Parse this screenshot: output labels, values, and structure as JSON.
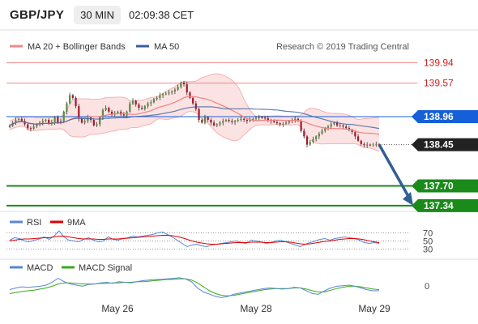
{
  "header": {
    "symbol": "GBP/JPY",
    "timeframe": "30 MIN",
    "time": "02:09:38 CET"
  },
  "colors": {
    "bollinger": "#f08a8a",
    "ma50": "#3a5f9e",
    "ma20": "#f08080",
    "up_candle": "#5a8a3c",
    "down_candle": "#a3182a",
    "resistance": "#f08a8a",
    "support": "#1a8a1a",
    "pivot_blue": "#1560d8",
    "last_price": "#222222",
    "arrow": "#2f5f95",
    "rsi": "#5b86d6",
    "rsi_ma": "#e00000",
    "macd": "#5b86d6",
    "macd_signal": "#3aaa1a"
  },
  "chart_data": {
    "type": "candlestick",
    "title": "",
    "legend": [
      {
        "name": "MA 20 + Bollinger Bands",
        "color": "#f08a8a",
        "shape": "line"
      },
      {
        "name": "MA 50",
        "color": "#3a5f9e",
        "shape": "line"
      }
    ],
    "copyright": "Research © 2019 Trading Central",
    "x_ticks": [
      "May 26",
      "May 28",
      "May 29"
    ],
    "y_range": [
      137.25,
      140.05
    ],
    "levels": [
      {
        "label": "139.94",
        "value": 139.94,
        "kind": "resistance"
      },
      {
        "label": "139.57",
        "value": 139.57,
        "kind": "resistance"
      },
      {
        "label": "138.96",
        "value": 138.96,
        "kind": "pivot"
      },
      {
        "label": "138.45",
        "value": 138.45,
        "kind": "last"
      },
      {
        "label": "137.70",
        "value": 137.7,
        "kind": "support"
      },
      {
        "label": "137.34",
        "value": 137.34,
        "kind": "support"
      }
    ],
    "close": [
      138.8,
      138.85,
      138.9,
      138.92,
      138.88,
      138.82,
      138.75,
      138.74,
      138.78,
      138.82,
      138.85,
      138.88,
      138.9,
      138.84,
      138.86,
      138.95,
      138.85,
      138.88,
      139.05,
      139.2,
      139.35,
      139.3,
      139.15,
      138.92,
      138.85,
      138.88,
      138.95,
      138.9,
      138.8,
      138.82,
      138.95,
      139.08,
      139.12,
      139.05,
      139.0,
      139.02,
      139.05,
      139.0,
      138.98,
      139.05,
      139.2,
      139.25,
      139.18,
      139.12,
      139.1,
      139.15,
      139.2,
      139.22,
      139.28,
      139.3,
      139.35,
      139.37,
      139.38,
      139.4,
      139.42,
      139.45,
      139.5,
      139.58,
      139.55,
      139.4,
      139.3,
      139.2,
      139.1,
      138.9,
      138.85,
      138.95,
      138.9,
      138.85,
      138.8,
      138.82,
      138.85,
      138.88,
      138.9,
      138.88,
      138.86,
      138.88,
      138.9,
      138.92,
      138.9,
      138.88,
      138.9,
      138.92,
      138.94,
      138.95,
      138.94,
      138.93,
      138.9,
      138.88,
      138.86,
      138.84,
      138.82,
      138.83,
      138.85,
      138.88,
      138.9,
      138.92,
      138.88,
      138.7,
      138.6,
      138.45,
      138.5,
      138.55,
      138.6,
      138.65,
      138.7,
      138.75,
      138.78,
      138.82,
      138.85,
      138.8,
      138.8,
      138.78,
      138.75,
      138.72,
      138.68,
      138.6,
      138.52,
      138.46,
      138.44,
      138.45,
      138.44,
      138.45,
      138.46,
      138.45
    ],
    "rsi": {
      "series": [
        "RSI",
        "9MA"
      ],
      "levels": [
        70,
        50,
        30
      ],
      "rsi_values": [
        52,
        58,
        56,
        50,
        48,
        52,
        55,
        60,
        54,
        62,
        75,
        60,
        52,
        50,
        48,
        54,
        58,
        52,
        48,
        50,
        60,
        54,
        52,
        56,
        58,
        62,
        60,
        62,
        64,
        66,
        70,
        72,
        66,
        60,
        52,
        44,
        36,
        40,
        42,
        38,
        36,
        40,
        42,
        44,
        46,
        48,
        50,
        46,
        44,
        52,
        50,
        48,
        44,
        46,
        50,
        52,
        48,
        44,
        40,
        36,
        42,
        46,
        50,
        54,
        56,
        52,
        56,
        58,
        60,
        58,
        56,
        52,
        46,
        44,
        46,
        44
      ],
      "ma_values": [
        50,
        52,
        54,
        55,
        55,
        56,
        57,
        58,
        58,
        60,
        62,
        62,
        60,
        58,
        56,
        55,
        55,
        55,
        54,
        54,
        55,
        55,
        55,
        56,
        57,
        58,
        59,
        60,
        61,
        62,
        63,
        64,
        64,
        63,
        61,
        58,
        54,
        50,
        47,
        45,
        43,
        42,
        42,
        43,
        44,
        45,
        46,
        46,
        46,
        47,
        47,
        47,
        46,
        46,
        47,
        48,
        48,
        47,
        45,
        43,
        42,
        43,
        45,
        47,
        49,
        50,
        52,
        54,
        55,
        56,
        56,
        55,
        53,
        50,
        48,
        46
      ]
    },
    "macd": {
      "series": [
        "MACD",
        "MACD Signal"
      ],
      "zero_label": "0",
      "macd_values": [
        -0.08,
        -0.05,
        -0.03,
        -0.04,
        -0.03,
        -0.02,
        0.0,
        0.05,
        0.12,
        0.06,
        0.02,
        0.0,
        -0.02,
        0.01,
        0.02,
        0.04,
        0.05,
        0.03,
        0.06,
        0.05,
        0.04,
        0.06,
        0.08,
        0.09,
        0.1,
        0.1,
        0.11,
        0.12,
        0.13,
        0.11,
        0.06,
        -0.05,
        -0.12,
        -0.16,
        -0.2,
        -0.22,
        -0.2,
        -0.16,
        -0.14,
        -0.12,
        -0.1,
        -0.08,
        -0.06,
        -0.05,
        -0.06,
        -0.07,
        -0.06,
        -0.04,
        -0.05,
        -0.1,
        -0.15,
        -0.16,
        -0.1,
        -0.05,
        -0.02,
        -0.01,
        0.0,
        -0.02,
        -0.05,
        -0.08,
        -0.1,
        -0.1
      ],
      "signal_values": [
        -0.15,
        -0.13,
        -0.11,
        -0.1,
        -0.09,
        -0.07,
        -0.05,
        -0.02,
        0.02,
        0.04,
        0.04,
        0.03,
        0.02,
        0.02,
        0.02,
        0.03,
        0.03,
        0.04,
        0.04,
        0.05,
        0.05,
        0.06,
        0.06,
        0.07,
        0.08,
        0.09,
        0.1,
        0.1,
        0.11,
        0.11,
        0.09,
        0.04,
        -0.03,
        -0.1,
        -0.15,
        -0.18,
        -0.19,
        -0.18,
        -0.16,
        -0.14,
        -0.12,
        -0.1,
        -0.08,
        -0.07,
        -0.06,
        -0.06,
        -0.06,
        -0.05,
        -0.05,
        -0.07,
        -0.1,
        -0.12,
        -0.12,
        -0.09,
        -0.06,
        -0.04,
        -0.02,
        -0.02,
        -0.03,
        -0.05,
        -0.07,
        -0.08
      ]
    }
  }
}
